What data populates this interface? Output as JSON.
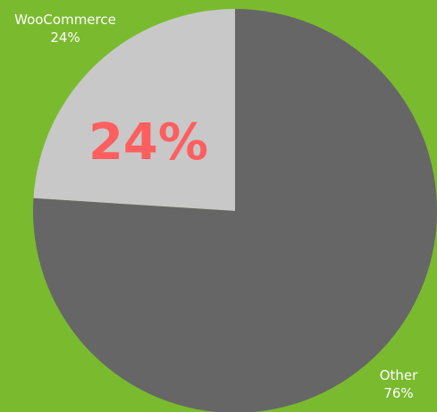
{
  "background_color": "#7aba2f",
  "highlight_color": "#ff5f5f",
  "highlight_text": "24%",
  "chart_data": {
    "type": "pie",
    "categories": [
      "WooCommerce",
      "Other"
    ],
    "values": [
      24,
      76
    ],
    "colors": [
      "#c8c8c8",
      "#666666"
    ],
    "value_labels": [
      "24%",
      "76%"
    ],
    "title": "",
    "legend": "none"
  }
}
